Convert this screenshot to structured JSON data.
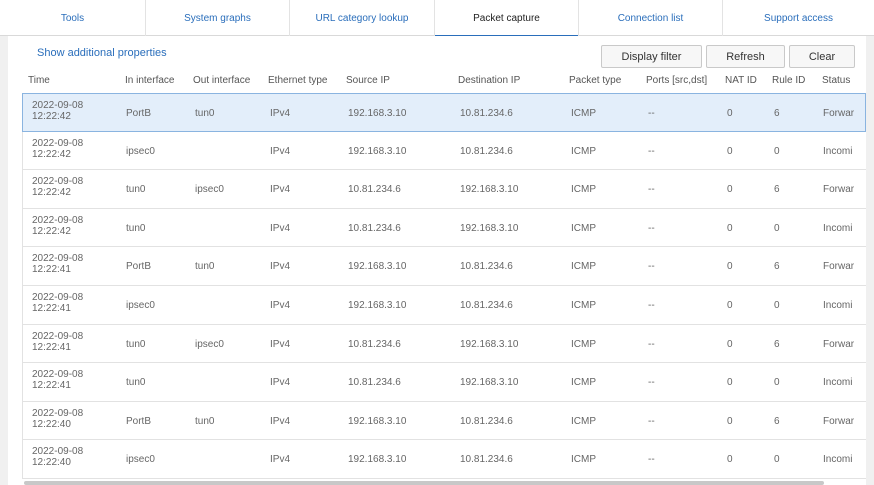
{
  "tabs": [
    {
      "label": "Tools",
      "active": false
    },
    {
      "label": "System graphs",
      "active": false
    },
    {
      "label": "URL category lookup",
      "active": false
    },
    {
      "label": "Packet capture",
      "active": true
    },
    {
      "label": "Connection list",
      "active": false
    },
    {
      "label": "Support access",
      "active": false
    }
  ],
  "toolbar": {
    "show_props": "Show additional properties",
    "display_filter": "Display filter",
    "refresh": "Refresh",
    "clear": "Clear"
  },
  "columns": [
    "Time",
    "In interface",
    "Out interface",
    "Ethernet type",
    "Source IP",
    "Destination IP",
    "Packet type",
    "Ports [src,dst]",
    "NAT ID",
    "Rule ID",
    "Status"
  ],
  "rows": [
    {
      "date": "2022-09-08",
      "time": "12:22:42",
      "in": "PortB",
      "out": "tun0",
      "eth": "IPv4",
      "src": "192.168.3.10",
      "dst": "10.81.234.6",
      "ptype": "ICMP",
      "ports": "--",
      "nat": "0",
      "rule": "6",
      "status": "Forwar",
      "selected": true
    },
    {
      "date": "2022-09-08",
      "time": "12:22:42",
      "in": "ipsec0",
      "out": "",
      "eth": "IPv4",
      "src": "192.168.3.10",
      "dst": "10.81.234.6",
      "ptype": "ICMP",
      "ports": "--",
      "nat": "0",
      "rule": "0",
      "status": "Incomi",
      "selected": false
    },
    {
      "date": "2022-09-08",
      "time": "12:22:42",
      "in": "tun0",
      "out": "ipsec0",
      "eth": "IPv4",
      "src": "10.81.234.6",
      "dst": "192.168.3.10",
      "ptype": "ICMP",
      "ports": "--",
      "nat": "0",
      "rule": "6",
      "status": "Forwar",
      "selected": false
    },
    {
      "date": "2022-09-08",
      "time": "12:22:42",
      "in": "tun0",
      "out": "",
      "eth": "IPv4",
      "src": "10.81.234.6",
      "dst": "192.168.3.10",
      "ptype": "ICMP",
      "ports": "--",
      "nat": "0",
      "rule": "0",
      "status": "Incomi",
      "selected": false
    },
    {
      "date": "2022-09-08",
      "time": "12:22:41",
      "in": "PortB",
      "out": "tun0",
      "eth": "IPv4",
      "src": "192.168.3.10",
      "dst": "10.81.234.6",
      "ptype": "ICMP",
      "ports": "--",
      "nat": "0",
      "rule": "6",
      "status": "Forwar",
      "selected": false
    },
    {
      "date": "2022-09-08",
      "time": "12:22:41",
      "in": "ipsec0",
      "out": "",
      "eth": "IPv4",
      "src": "192.168.3.10",
      "dst": "10.81.234.6",
      "ptype": "ICMP",
      "ports": "--",
      "nat": "0",
      "rule": "0",
      "status": "Incomi",
      "selected": false
    },
    {
      "date": "2022-09-08",
      "time": "12:22:41",
      "in": "tun0",
      "out": "ipsec0",
      "eth": "IPv4",
      "src": "10.81.234.6",
      "dst": "192.168.3.10",
      "ptype": "ICMP",
      "ports": "--",
      "nat": "0",
      "rule": "6",
      "status": "Forwar",
      "selected": false
    },
    {
      "date": "2022-09-08",
      "time": "12:22:41",
      "in": "tun0",
      "out": "",
      "eth": "IPv4",
      "src": "10.81.234.6",
      "dst": "192.168.3.10",
      "ptype": "ICMP",
      "ports": "--",
      "nat": "0",
      "rule": "0",
      "status": "Incomi",
      "selected": false
    },
    {
      "date": "2022-09-08",
      "time": "12:22:40",
      "in": "PortB",
      "out": "tun0",
      "eth": "IPv4",
      "src": "192.168.3.10",
      "dst": "10.81.234.6",
      "ptype": "ICMP",
      "ports": "--",
      "nat": "0",
      "rule": "6",
      "status": "Forwar",
      "selected": false
    },
    {
      "date": "2022-09-08",
      "time": "12:22:40",
      "in": "ipsec0",
      "out": "",
      "eth": "IPv4",
      "src": "192.168.3.10",
      "dst": "10.81.234.6",
      "ptype": "ICMP",
      "ports": "--",
      "nat": "0",
      "rule": "0",
      "status": "Incomi",
      "selected": false
    }
  ],
  "colors": {
    "accent": "#2a6ebb",
    "selected_row": "#e3eefa"
  }
}
